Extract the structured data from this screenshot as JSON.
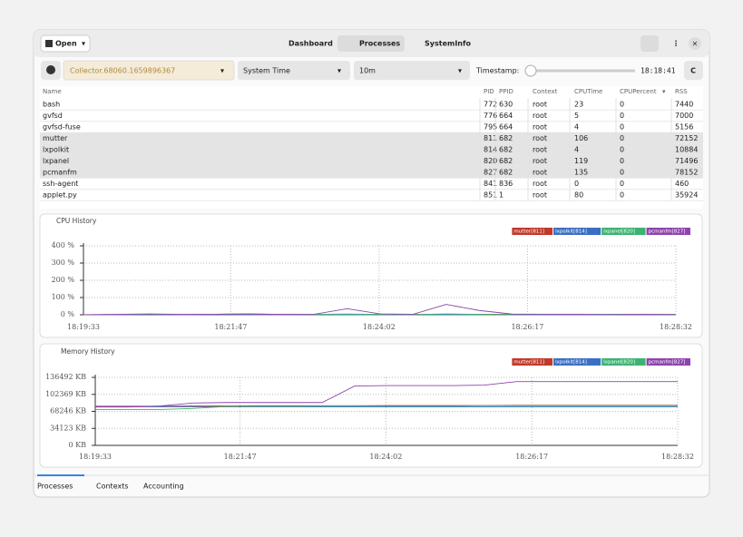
{
  "header": {
    "open": "Open",
    "tabs": [
      "Dashboard",
      "Processes",
      "SystemInfo"
    ]
  },
  "toolbar": {
    "collector": "Collector.68060.1659896367",
    "time_mode": "System Time",
    "range": "10m",
    "timestamp_label": "Timestamp:",
    "timestamp": "18:18:41"
  },
  "table": {
    "columns": [
      "Name",
      "PID",
      "PPID",
      "Context",
      "CPUTime",
      "CPUPercent",
      "RSS"
    ],
    "rows": [
      [
        "bash",
        "772",
        "630",
        "root",
        "23",
        "0",
        "7440"
      ],
      [
        "gvfsd",
        "776",
        "664",
        "root",
        "5",
        "0",
        "7000"
      ],
      [
        "gvfsd-fuse",
        "795",
        "664",
        "root",
        "4",
        "0",
        "5156"
      ],
      [
        "mutter",
        "811",
        "682",
        "root",
        "106",
        "0",
        "72152"
      ],
      [
        "lxpolkit",
        "814",
        "682",
        "root",
        "4",
        "0",
        "10884"
      ],
      [
        "lxpanel",
        "820",
        "682",
        "root",
        "119",
        "0",
        "71496"
      ],
      [
        "pcmanfm",
        "827",
        "682",
        "root",
        "135",
        "0",
        "78152"
      ],
      [
        "ssh-agent",
        "841",
        "836",
        "root",
        "0",
        "0",
        "460"
      ],
      [
        "applet.py",
        "851",
        "1",
        "root",
        "80",
        "0",
        "35924"
      ]
    ]
  },
  "chart_data": [
    {
      "type": "line",
      "title": "CPU History",
      "x": [
        "18:19:33",
        "18:20:03",
        "18:20:33",
        "18:21:03",
        "18:21:33",
        "18:22:03",
        "18:22:33",
        "18:23:03",
        "18:23:33",
        "18:24:03",
        "18:24:33",
        "18:25:03",
        "18:25:33",
        "18:26:03",
        "18:26:33",
        "18:27:03",
        "18:27:33",
        "18:28:03",
        "18:28:32"
      ],
      "xlim": [
        "18:19:33",
        "18:28:32"
      ],
      "xticks": [
        "18:19:33",
        "18:21:47",
        "18:24:02",
        "18:26:17",
        "18:28:32"
      ],
      "ylim": [
        0,
        400
      ],
      "yticks": [
        {
          "value": 0,
          "label": "0 %"
        },
        {
          "value": 100,
          "label": "100 %"
        },
        {
          "value": 200,
          "label": "200 %"
        },
        {
          "value": 300,
          "label": "300 %"
        },
        {
          "value": 400,
          "label": "400 %"
        }
      ],
      "grid": true,
      "series": [
        {
          "name": "mutter[811]",
          "color": "#c0392b",
          "values": [
            0,
            1,
            2,
            1,
            3,
            5,
            2,
            1,
            2,
            3,
            2,
            1,
            3,
            2,
            1,
            2,
            1,
            2,
            1
          ]
        },
        {
          "name": "lxpolkit[814]",
          "color": "#3a6fc4",
          "values": [
            0,
            0,
            1,
            0,
            1,
            0,
            0,
            1,
            0,
            0,
            1,
            0,
            0,
            1,
            0,
            0,
            0,
            1,
            0
          ]
        },
        {
          "name": "lxpanel[820]",
          "color": "#3cb371",
          "values": [
            0,
            1,
            3,
            1,
            2,
            3,
            1,
            2,
            4,
            2,
            1,
            5,
            2,
            1,
            2,
            1,
            3,
            1,
            2
          ]
        },
        {
          "name": "pcmanfm[827]",
          "color": "#8e44ad",
          "values": [
            0,
            2,
            5,
            2,
            3,
            4,
            2,
            3,
            35,
            5,
            3,
            60,
            25,
            4,
            3,
            2,
            1,
            2,
            1
          ]
        }
      ]
    },
    {
      "type": "line",
      "title": "Memory History",
      "x": [
        "18:19:33",
        "18:20:03",
        "18:20:33",
        "18:21:03",
        "18:21:33",
        "18:22:03",
        "18:22:33",
        "18:23:03",
        "18:23:33",
        "18:24:03",
        "18:24:33",
        "18:25:03",
        "18:25:33",
        "18:26:03",
        "18:26:33",
        "18:27:03",
        "18:27:33",
        "18:28:03",
        "18:28:32"
      ],
      "xlim": [
        "18:19:33",
        "18:28:32"
      ],
      "xticks": [
        "18:19:33",
        "18:21:47",
        "18:24:02",
        "18:26:17",
        "18:28:32"
      ],
      "ylim": [
        0,
        136492
      ],
      "yticks": [
        {
          "value": 0,
          "label": "0 KB"
        },
        {
          "value": 34123,
          "label": "34123 KB"
        },
        {
          "value": 68246,
          "label": "68246 KB"
        },
        {
          "value": 102369,
          "label": "102369 KB"
        },
        {
          "value": 136492,
          "label": "136492 KB"
        }
      ],
      "grid": true,
      "series": [
        {
          "name": "mutter[811]",
          "color": "#c0392b",
          "values": [
            78500,
            78500,
            78500,
            79000,
            79000,
            79500,
            79500,
            79500,
            79500,
            80000,
            80000,
            80000,
            80000,
            80500,
            80500,
            80500,
            80500,
            80500,
            80500
          ]
        },
        {
          "name": "lxpolkit[814]",
          "color": "#3a6fc4",
          "values": [
            77500,
            77500,
            77500,
            77500,
            77500,
            77500,
            77500,
            77500,
            77500,
            77500,
            77500,
            77500,
            77500,
            77500,
            77500,
            77500,
            77500,
            77500,
            77500
          ]
        },
        {
          "name": "lxpanel[820]",
          "color": "#3cb371",
          "values": [
            72000,
            72000,
            72000,
            74000,
            78000,
            78500,
            78500,
            79000,
            79000,
            79000,
            79000,
            79000,
            79500,
            79500,
            79500,
            79500,
            79500,
            79500,
            79500
          ]
        },
        {
          "name": "pcmanfm[827]",
          "color": "#8e44ad",
          "values": [
            77000,
            77000,
            79000,
            85000,
            86000,
            86000,
            86000,
            86000,
            119000,
            120000,
            120000,
            120000,
            121000,
            128000,
            128000,
            128000,
            128000,
            128000,
            128000
          ]
        }
      ]
    }
  ],
  "bottom_tabs": [
    "Processes",
    "Contexts",
    "Accounting"
  ]
}
